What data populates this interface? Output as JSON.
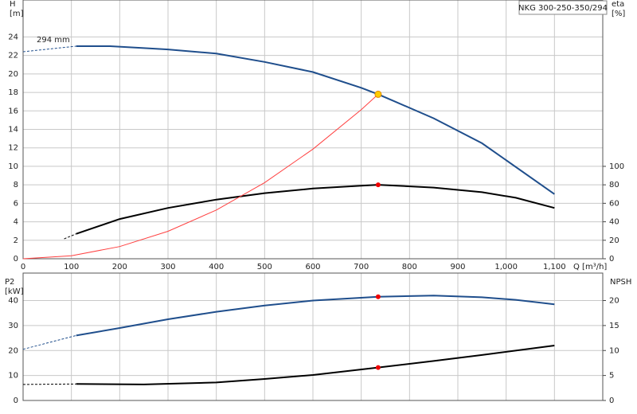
{
  "chart_data": [
    {
      "type": "line",
      "title": "NKG 300-250-350/294",
      "xlabel": "Q [m³/h]",
      "ylabel": "H",
      "yunit": "[m]",
      "y2label": "eta",
      "y2unit": "[%]",
      "annotation": "294 mm",
      "xlim": [
        0,
        1200
      ],
      "xticks": [
        0,
        100,
        200,
        300,
        400,
        500,
        600,
        700,
        800,
        900,
        {
          "value": 1000,
          "label": "1,000"
        },
        {
          "value": 1100,
          "label": "1,100"
        }
      ],
      "ylim": [
        0,
        28
      ],
      "yticks": [
        0,
        2,
        4,
        6,
        8,
        10,
        12,
        14,
        16,
        18,
        20,
        22,
        24
      ],
      "y2lim": [
        0,
        280
      ],
      "y2ticks": [
        0,
        20,
        40,
        60,
        80,
        100
      ],
      "grid": true,
      "series": [
        {
          "color": "#1f4e8c",
          "style": "dashed",
          "x": [
            0,
            110
          ],
          "values": [
            22.4,
            23.0
          ]
        },
        {
          "color": "#1f4e8c",
          "style": "solid",
          "x": [
            110,
            180,
            250,
            300,
            400,
            500,
            600,
            700,
            735,
            850,
            950,
            1100
          ],
          "values": [
            23.0,
            23.0,
            22.8,
            22.65,
            22.2,
            21.3,
            20.2,
            18.5,
            17.8,
            15.2,
            12.5,
            7.0
          ]
        },
        {
          "color": "#000000",
          "style": "dashed",
          "axis": "y2",
          "x": [
            85,
            110
          ],
          "values": [
            21.5,
            27
          ]
        },
        {
          "color": "#000000",
          "style": "solid",
          "axis": "y2",
          "x": [
            110,
            200,
            300,
            400,
            500,
            600,
            700,
            735,
            850,
            950,
            1020,
            1100
          ],
          "values": [
            27,
            43,
            55,
            64,
            71,
            76,
            79,
            80,
            77,
            72,
            66,
            55
          ]
        },
        {
          "color": "#ff4040",
          "style": "thin",
          "x": [
            0,
            100,
            200,
            300,
            400,
            500,
            600,
            700,
            735
          ],
          "values": [
            0,
            0.33,
            1.32,
            2.97,
            5.27,
            8.24,
            11.86,
            16.14,
            17.8
          ]
        },
        {
          "color": "#ffcc00",
          "style": "marker",
          "x": [
            735
          ],
          "values": [
            17.8
          ]
        },
        {
          "color": "#ee0000",
          "style": "marker",
          "axis": "y2",
          "x": [
            735
          ],
          "values": [
            80
          ]
        }
      ]
    },
    {
      "type": "line",
      "ylabel": "P2",
      "yunit": "[kW]",
      "y2label": "NPSH",
      "xlim": [
        0,
        1200
      ],
      "ylim": [
        0,
        51
      ],
      "yticks": [
        0,
        10,
        20,
        30,
        40
      ],
      "y2lim": [
        0,
        25.5
      ],
      "y2ticks": [
        0,
        5,
        10,
        15,
        20
      ],
      "grid": true,
      "series": [
        {
          "color": "#1f4e8c",
          "style": "dashed",
          "x": [
            0,
            110
          ],
          "values": [
            20.5,
            26
          ]
        },
        {
          "color": "#1f4e8c",
          "style": "solid",
          "x": [
            110,
            200,
            300,
            400,
            500,
            600,
            735,
            850,
            950,
            1020,
            1100
          ],
          "values": [
            26,
            29,
            32.5,
            35.5,
            38,
            40,
            41.5,
            42,
            41.3,
            40.3,
            38.5
          ]
        },
        {
          "color": "#000000",
          "style": "dashed",
          "axis": "y2",
          "x": [
            0,
            110
          ],
          "values": [
            3.2,
            3.3
          ]
        },
        {
          "color": "#000000",
          "style": "solid",
          "axis": "y2",
          "x": [
            110,
            250,
            400,
            500,
            600,
            735,
            850,
            950,
            1100
          ],
          "values": [
            3.3,
            3.2,
            3.6,
            4.3,
            5.1,
            6.6,
            7.9,
            9.1,
            11
          ]
        },
        {
          "color": "#ee0000",
          "style": "marker",
          "x": [
            735
          ],
          "values": [
            41.5
          ]
        },
        {
          "color": "#ee0000",
          "style": "marker",
          "axis": "y2",
          "x": [
            735
          ],
          "values": [
            6.6
          ]
        }
      ]
    }
  ]
}
